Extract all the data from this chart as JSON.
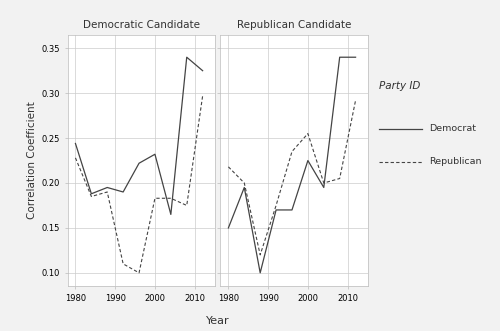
{
  "years": [
    1980,
    1984,
    1988,
    1992,
    1996,
    2000,
    2004,
    2008,
    2012
  ],
  "dem_panel": {
    "democrat": [
      0.244,
      0.188,
      0.195,
      0.19,
      0.222,
      0.232,
      0.165,
      0.34,
      0.325
    ],
    "republican": [
      0.228,
      0.185,
      0.19,
      0.11,
      0.1,
      0.183,
      0.183,
      0.175,
      0.297
    ]
  },
  "rep_panel": {
    "democrat": [
      0.15,
      0.195,
      0.1,
      0.17,
      0.17,
      0.225,
      0.195,
      0.34,
      0.34
    ],
    "republican": [
      0.218,
      0.2,
      0.12,
      0.175,
      0.235,
      0.255,
      0.2,
      0.205,
      0.292
    ]
  },
  "panel_titles": [
    "Democratic Candidate",
    "Republican Candidate"
  ],
  "ylabel": "Correlation Coefficient",
  "xlabel": "Year",
  "legend_title": "Party ID",
  "legend_labels": [
    "Democrat",
    "Republican"
  ],
  "ylim": [
    0.085,
    0.365
  ],
  "yticks": [
    0.1,
    0.15,
    0.2,
    0.25,
    0.3,
    0.35
  ],
  "ytick_labels": [
    "0.10",
    "0.15",
    "0.20",
    "0.25",
    "0.30",
    "0.35"
  ],
  "xticks": [
    1980,
    1990,
    2000,
    2010
  ],
  "xlim": [
    1978,
    2015
  ],
  "bg_color": "#f2f2f2",
  "panel_bg": "#ffffff",
  "grid_color": "#cccccc",
  "line_color": "#444444",
  "strip_bg": "#d9d9d9",
  "strip_border": "#bbbbbb",
  "spine_color": "#bbbbbb",
  "solid_lw": 0.9,
  "dot_lw": 0.8
}
